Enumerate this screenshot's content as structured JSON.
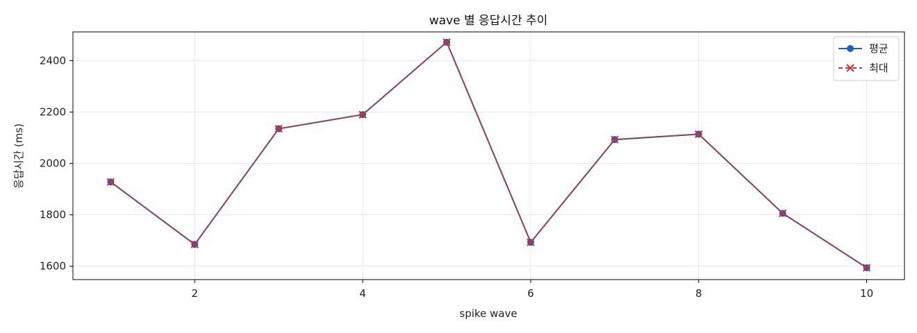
{
  "chart_data": {
    "type": "line",
    "title": "wave 별 응답시간 추이",
    "xlabel": "spike wave",
    "ylabel": "응답시간 (ms)",
    "x": [
      1,
      2,
      3,
      4,
      5,
      6,
      7,
      8,
      9,
      10
    ],
    "xlim": [
      0.55,
      10.45
    ],
    "ylim": [
      1548,
      2512
    ],
    "xticks": [
      2,
      4,
      6,
      8,
      10
    ],
    "yticks": [
      1600,
      1800,
      2000,
      2200,
      2400
    ],
    "grid": true,
    "legend_position": "top-right",
    "series": [
      {
        "name": "평균",
        "values": [
          1928,
          1685,
          2135,
          2190,
          2472,
          1693,
          2093,
          2114,
          1806,
          1594
        ],
        "color": "#1f5fb4",
        "line_style": "solid",
        "marker": "circle"
      },
      {
        "name": "최대",
        "values": [
          1928,
          1685,
          2135,
          2190,
          2472,
          1693,
          2093,
          2114,
          1806,
          1594
        ],
        "color": "#cc3333",
        "line_style": "dashed",
        "marker": "x"
      }
    ]
  }
}
